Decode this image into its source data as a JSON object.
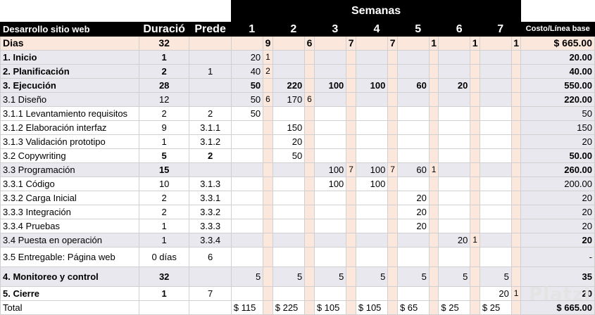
{
  "header": {
    "band_title": "Semanas",
    "task_col": "Desarrollo sitio web",
    "duration_col": "Duració",
    "pred_col": "Prede",
    "weeks": [
      "1",
      "2",
      "3",
      "4",
      "5",
      "6",
      "7"
    ],
    "cost_col": "Costo/Línea base"
  },
  "dias_row": {
    "label": "Dias",
    "duration": "32",
    "week_days": [
      "",
      "9",
      "",
      "6",
      "",
      "7",
      "",
      "7",
      "",
      "1",
      "",
      "1",
      "",
      "1"
    ],
    "cost": "$ 665.00"
  },
  "rows": [
    {
      "task": "1.  Inicio",
      "dur": "1",
      "pred": "",
      "cells": [
        "20",
        "1",
        "",
        "",
        "",
        "",
        "",
        "",
        "",
        "",
        "",
        "",
        "",
        ""
      ],
      "cost": "20.00",
      "style": "gray-bold"
    },
    {
      "task": "2.  Planificación",
      "dur": "2",
      "pred": "1",
      "cells": [
        "40",
        "2",
        "",
        "",
        "",
        "",
        "",
        "",
        "",
        "",
        "",
        "",
        "",
        ""
      ],
      "cost": "40.00",
      "style": "gray-bold"
    },
    {
      "task": "3. Ejecución",
      "dur": "28",
      "pred": "",
      "cells": [
        "50",
        "",
        "220",
        "",
        "100",
        "",
        "100",
        "",
        "60",
        "",
        "20",
        "",
        "",
        ""
      ],
      "cost": "550.00",
      "style": "gray-allbold"
    },
    {
      "task": "3.1 Diseño",
      "dur": "12",
      "pred": "",
      "cells": [
        "50",
        "6",
        "170",
        "6",
        "",
        "",
        "",
        "",
        "",
        "",
        "",
        "",
        "",
        ""
      ],
      "cost": "220.00",
      "style": "gray-cost"
    },
    {
      "task": "3.1.1 Levantamiento requisitos",
      "dur": "2",
      "pred": "2",
      "cells": [
        "50",
        "",
        "",
        "",
        "",
        "",
        "",
        "",
        "",
        "",
        "",
        "",
        "",
        ""
      ],
      "cost": "50",
      "style": "white"
    },
    {
      "task": "3.1.2 Elaboración interfaz",
      "dur": "9",
      "pred": "3.1.1",
      "cells": [
        "",
        "",
        "150",
        "",
        "",
        "",
        "",
        "",
        "",
        "",
        "",
        "",
        "",
        ""
      ],
      "cost": "150",
      "style": "white"
    },
    {
      "task": "3.1.3 Validación prototipo",
      "dur": "1",
      "pred": "3.1.2",
      "cells": [
        "",
        "",
        "20",
        "",
        "",
        "",
        "",
        "",
        "",
        "",
        "",
        "",
        "",
        ""
      ],
      "cost": "20",
      "style": "white"
    },
    {
      "task": "3.2 Copywriting",
      "dur": "5",
      "pred": "2",
      "cells": [
        "",
        "",
        "50",
        "",
        "",
        "",
        "",
        "",
        "",
        "",
        "",
        "",
        "",
        ""
      ],
      "cost": "50.00",
      "style": "white-boldnums"
    },
    {
      "task": "3.3 Programación",
      "dur": "15",
      "pred": "",
      "cells": [
        "",
        "",
        "",
        "",
        "100",
        "7",
        "100",
        "7",
        "60",
        "1",
        "",
        "",
        "",
        ""
      ],
      "cost": "260.00",
      "style": "gray-boldnums"
    },
    {
      "task": "3.3.1  Código",
      "dur": "10",
      "pred": "3.1.3",
      "cells": [
        "",
        "",
        "",
        "",
        "100",
        "",
        "100",
        "",
        "",
        "",
        "",
        "",
        "",
        ""
      ],
      "cost": "200.00",
      "style": "white"
    },
    {
      "task": "3.3.2 Carga Inicial",
      "dur": "2",
      "pred": "3.3.1",
      "cells": [
        "",
        "",
        "",
        "",
        "",
        "",
        "",
        "",
        "20",
        "",
        "",
        "",
        "",
        ""
      ],
      "cost": "20",
      "style": "white"
    },
    {
      "task": "3.3.3 Integración",
      "dur": "2",
      "pred": "3.3.2",
      "cells": [
        "",
        "",
        "",
        "",
        "",
        "",
        "",
        "",
        "20",
        "",
        "",
        "",
        "",
        ""
      ],
      "cost": "20",
      "style": "white"
    },
    {
      "task": "3.3.4 Pruebas",
      "dur": "1",
      "pred": "3.3.3",
      "cells": [
        "",
        "",
        "",
        "",
        "",
        "",
        "",
        "",
        "20",
        "",
        "",
        "",
        "",
        ""
      ],
      "cost": "20",
      "style": "white"
    },
    {
      "task": "3.4 Puesta en operación",
      "dur": "1",
      "pred": "3.3.4",
      "cells": [
        "",
        "",
        "",
        "",
        "",
        "",
        "",
        "",
        "",
        "",
        "20",
        "1",
        "",
        ""
      ],
      "cost": "20",
      "style": "gray-boldcost"
    },
    {
      "task": "3.5 Entregable: Página web",
      "dur": "0 días",
      "pred": "6",
      "cells": [
        "",
        "",
        "",
        "",
        "",
        "",
        "",
        "",
        "",
        "",
        "",
        "",
        "",
        ""
      ],
      "cost": "-",
      "style": "white-tall"
    },
    {
      "task": "4. Monitoreo y control",
      "dur": "32",
      "pred": "",
      "cells": [
        "5",
        "",
        "5",
        "",
        "5",
        "",
        "5",
        "",
        "5",
        "",
        "5",
        "",
        "5",
        ""
      ],
      "cost": "35",
      "style": "gray-bold-tall"
    },
    {
      "task": "5. Cierre",
      "dur": "1",
      "pred": "7",
      "cells": [
        "",
        "",
        "",
        "",
        "",
        "",
        "",
        "",
        "",
        "",
        "",
        "",
        "20",
        "1"
      ],
      "cost": "20",
      "style": "white-bold"
    }
  ],
  "total_row": {
    "label": "Total",
    "amounts": [
      "$ 115",
      "$ 225",
      "$ 105",
      "$ 105",
      "$ 65",
      "$ 25",
      "$ 25"
    ],
    "cost": "$ 665.00"
  },
  "watermark": "Platzi",
  "colors": {
    "header_bg": "#000000",
    "dias_bg": "#fbe7dc",
    "stripe_bg": "#e8e8ee"
  }
}
